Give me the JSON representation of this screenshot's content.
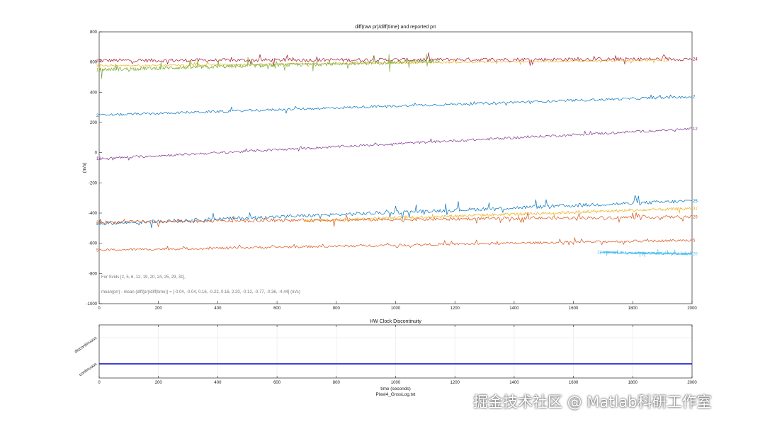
{
  "watermark": "掘金技术社区 @ Matlab科研工作室",
  "colors": {
    "crimson": "#a2142f",
    "yellow": "#edb120",
    "green": "#77ac30",
    "blue": "#0072bd",
    "purple": "#7e2f8e",
    "orange": "#d95319",
    "cyan": "#4dbeee",
    "step": "#0000cc"
  },
  "chart_data": [
    {
      "type": "line",
      "title": "diff(raw pr)/diff(time) and reported prr",
      "xlabel": "",
      "ylabel": "(m/s)",
      "xlim": [
        0,
        2000
      ],
      "ylim": [
        -1000,
        800
      ],
      "xticks": [
        0,
        200,
        400,
        600,
        800,
        1000,
        1200,
        1400,
        1600,
        1800,
        2000
      ],
      "yticks": [
        -1000,
        -800,
        -600,
        -400,
        -200,
        0,
        200,
        400,
        600,
        800
      ],
      "grid": false,
      "notes": [
        "For Svids [2, 5, 6, 12, 19, 20, 24, 25, 29, 31],",
        "mean(prr) - mean (diff(pr)/diff(time)) = [-0.04, -0.04, 0.16, -0.22, 0.16, 2.20, -0.12, -0.77, -0.36, -4.44] (m/s)"
      ],
      "series": [
        {
          "name": "24",
          "color": "crimson",
          "x": [
            0,
            2000
          ],
          "y": [
            610,
            620
          ],
          "noise": 12,
          "spike": 40
        },
        {
          "name": "31",
          "color": "yellow",
          "x": [
            0,
            1900
          ],
          "y": [
            575,
            612
          ],
          "noise": 6,
          "spike": 20
        },
        {
          "name": "19",
          "color": "green",
          "x": [
            0,
            1130
          ],
          "y": [
            550,
            605
          ],
          "noise": 12,
          "spike": 60
        },
        {
          "name": "2",
          "color": "blue",
          "x": [
            0,
            2000
          ],
          "y": [
            248,
            370
          ],
          "noise": 8,
          "spike": 20
        },
        {
          "name": "12",
          "color": "purple",
          "x": [
            0,
            2000
          ],
          "y": [
            -40,
            158
          ],
          "noise": 8,
          "spike": 15
        },
        {
          "name": "25",
          "color": "blue",
          "x": [
            0,
            2000
          ],
          "y": [
            -470,
            -320
          ],
          "noise": 12,
          "spike": 50
        },
        {
          "name": "31",
          "color": "yellow",
          "x": [
            700,
            2000
          ],
          "y": [
            -450,
            -370
          ],
          "noise": 10,
          "spike": 20
        },
        {
          "name": "29",
          "color": "orange",
          "x": [
            0,
            2000
          ],
          "y": [
            -460,
            -425
          ],
          "noise": 10,
          "spike": 40
        },
        {
          "name": "5",
          "color": "orange",
          "x": [
            0,
            2000
          ],
          "y": [
            -645,
            -580
          ],
          "noise": 8,
          "spike": 25
        },
        {
          "name": "20",
          "color": "cyan",
          "x": [
            1690,
            2000
          ],
          "y": [
            -660,
            -670
          ],
          "noise": 8,
          "spike": 25
        }
      ]
    },
    {
      "type": "line",
      "title": "HW Clock Discontinuity",
      "xlabel": "time (seconds)",
      "subtitle": "Pixel4_GnssLog.txt",
      "xlim": [
        0,
        2000
      ],
      "xticks": [
        0,
        200,
        400,
        600,
        800,
        1000,
        1200,
        1400,
        1600,
        1800,
        2000
      ],
      "yticklabels": [
        "continuous",
        "discontinuous"
      ],
      "grid": true,
      "series": [
        {
          "name": "",
          "color": "step",
          "x": [
            0,
            2000
          ],
          "y": [
            0,
            0
          ]
        }
      ]
    }
  ]
}
